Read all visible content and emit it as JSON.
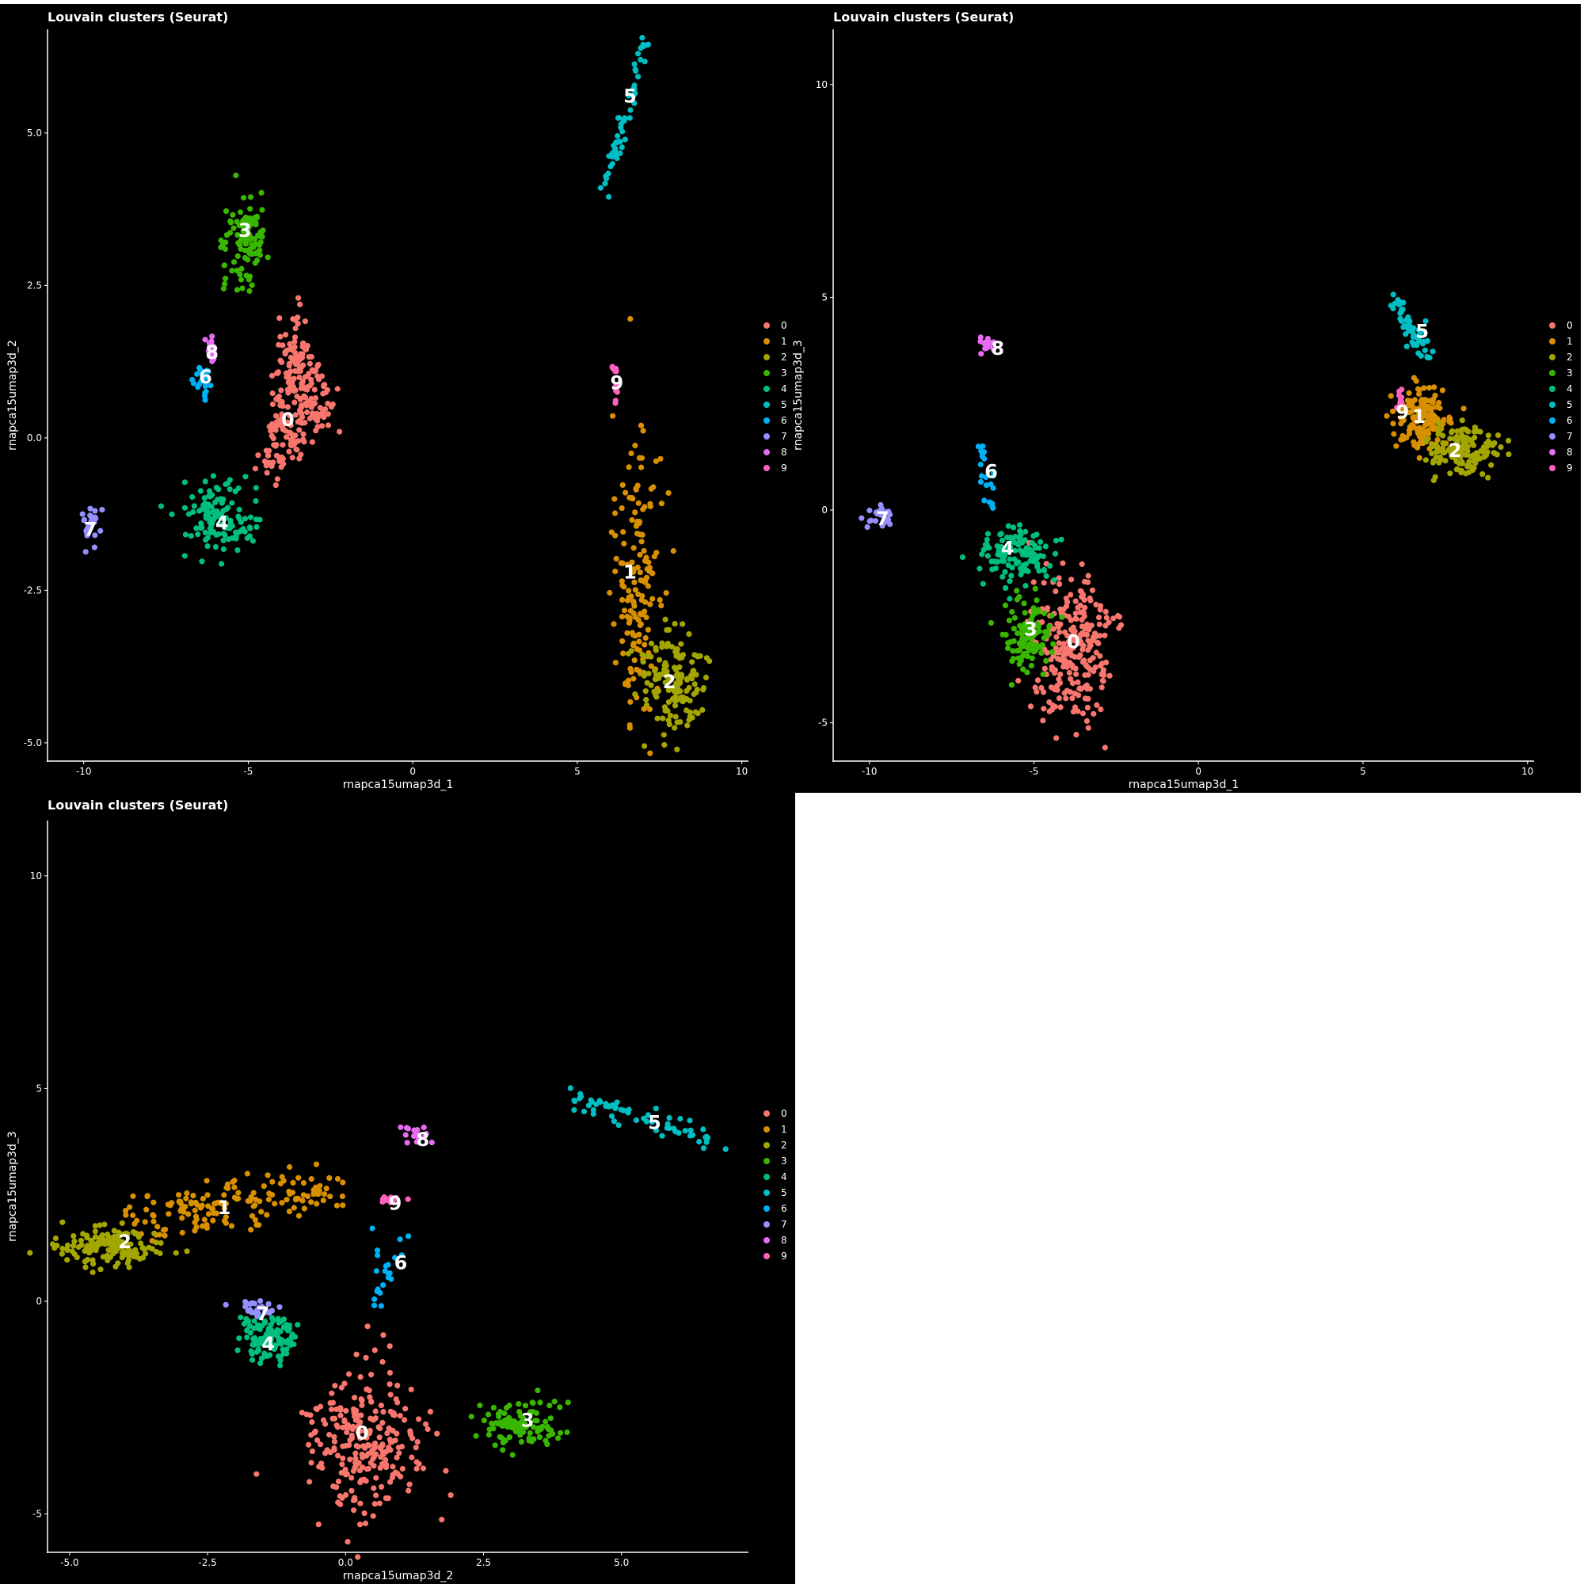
{
  "chart_data": [
    {
      "type": "scatter",
      "title": "Louvain clusters (Seurat)",
      "xlabel": "rnapca15umap3d_1",
      "ylabel": "rnapca15umap3d_2",
      "xlim": [
        -11.1,
        10.2
      ],
      "ylim": [
        -5.3,
        6.7
      ],
      "xticks": [
        -10,
        -5,
        0,
        5,
        10
      ],
      "xtick_labels": [
        "-10",
        "-5",
        "0",
        "5",
        "10"
      ],
      "yticks": [
        -5,
        -2.5,
        0,
        2.5,
        5
      ],
      "ytick_labels": [
        "-5.0",
        "-2.5",
        "0.0",
        "2.5",
        "5.0"
      ],
      "legend_position": "right",
      "clusters": [
        {
          "name": "0",
          "color": "#F8766D",
          "shape": "triangle",
          "blob": [
            [
              -3.7,
              2.2
            ],
            [
              -2.3,
              0.3
            ],
            [
              -4.6,
              -0.7
            ]
          ],
          "n": 260,
          "label_pos": [
            -3.8,
            0.3
          ]
        },
        {
          "name": "1",
          "color": "#D89000",
          "shape": "ellipse",
          "cx": 6.8,
          "cy": -2.4,
          "rx": 0.7,
          "ry": 1.9,
          "n": 160,
          "label_pos": [
            6.6,
            -2.2
          ]
        },
        {
          "name": "2",
          "color": "#A3A500",
          "shape": "ellipse",
          "cx": 7.9,
          "cy": -4.0,
          "rx": 1.0,
          "ry": 0.8,
          "n": 150,
          "label_pos": [
            7.8,
            -4.0
          ]
        },
        {
          "name": "3",
          "color": "#39B600",
          "shape": "ellipse",
          "cx": -5.1,
          "cy": 3.2,
          "rx": 0.6,
          "ry": 0.8,
          "n": 110,
          "label_pos": [
            -5.1,
            3.4
          ]
        },
        {
          "name": "4",
          "color": "#00BF7D",
          "shape": "ellipse",
          "cx": -5.9,
          "cy": -1.3,
          "rx": 1.0,
          "ry": 0.55,
          "n": 120,
          "label_pos": [
            -5.8,
            -1.4
          ]
        },
        {
          "name": "5",
          "color": "#00BFC4",
          "shape": "line",
          "from": [
            5.8,
            4.0
          ],
          "to": [
            7.1,
            6.5
          ],
          "spread": 0.08,
          "n": 60,
          "label_pos": [
            6.6,
            5.6
          ]
        },
        {
          "name": "6",
          "color": "#00B0F6",
          "shape": "ellipse",
          "cx": -6.4,
          "cy": 0.9,
          "rx": 0.25,
          "ry": 0.35,
          "n": 22,
          "label_pos": [
            -6.3,
            1.0
          ]
        },
        {
          "name": "7",
          "color": "#9590FF",
          "shape": "ellipse",
          "cx": -9.8,
          "cy": -1.45,
          "rx": 0.25,
          "ry": 0.3,
          "n": 25,
          "label_pos": [
            -9.8,
            -1.5
          ]
        },
        {
          "name": "8",
          "color": "#E76BF3",
          "shape": "ellipse",
          "cx": -6.15,
          "cy": 1.4,
          "rx": 0.15,
          "ry": 0.25,
          "n": 16,
          "label_pos": [
            -6.1,
            1.4
          ]
        },
        {
          "name": "9",
          "color": "#FF62BC",
          "shape": "ellipse",
          "cx": 6.15,
          "cy": 1.0,
          "rx": 0.08,
          "ry": 0.35,
          "n": 12,
          "label_pos": [
            6.2,
            0.9
          ]
        }
      ]
    },
    {
      "type": "scatter",
      "title": "Louvain clusters (Seurat)",
      "xlabel": "rnapca15umap3d_1",
      "ylabel": "rnapca15umap3d_3",
      "xlim": [
        -11.1,
        10.2
      ],
      "ylim": [
        -5.9,
        11.3
      ],
      "xticks": [
        -10,
        -5,
        0,
        5,
        10
      ],
      "xtick_labels": [
        "-10",
        "-5",
        "0",
        "5",
        "10"
      ],
      "yticks": [
        -5,
        0,
        5,
        10
      ],
      "ytick_labels": [
        "-5",
        "0",
        "5",
        "10"
      ],
      "legend_position": "right",
      "clusters": [
        {
          "name": "0",
          "color": "#F8766D",
          "shape": "ellipse",
          "cx": -3.8,
          "cy": -3.3,
          "rx": 1.1,
          "ry": 1.6,
          "n": 260,
          "label_pos": [
            -3.8,
            -3.1
          ]
        },
        {
          "name": "1",
          "color": "#D89000",
          "shape": "ellipse",
          "cx": 6.8,
          "cy": 2.1,
          "rx": 0.8,
          "ry": 0.7,
          "n": 160,
          "label_pos": [
            6.7,
            2.2
          ]
        },
        {
          "name": "2",
          "color": "#A3A500",
          "shape": "ellipse",
          "cx": 8.0,
          "cy": 1.4,
          "rx": 1.0,
          "ry": 0.5,
          "n": 150,
          "label_pos": [
            7.8,
            1.4
          ]
        },
        {
          "name": "3",
          "color": "#39B600",
          "shape": "ellipse",
          "cx": -5.1,
          "cy": -3.0,
          "rx": 0.6,
          "ry": 0.75,
          "n": 110,
          "label_pos": [
            -5.1,
            -2.8
          ]
        },
        {
          "name": "4",
          "color": "#00BF7D",
          "shape": "ellipse",
          "cx": -5.6,
          "cy": -1.0,
          "rx": 1.0,
          "ry": 0.55,
          "n": 120,
          "label_pos": [
            -5.8,
            -0.9
          ]
        },
        {
          "name": "5",
          "color": "#00BFC4",
          "shape": "line",
          "from": [
            6.0,
            4.8
          ],
          "to": [
            7.0,
            3.6
          ],
          "spread": 0.15,
          "n": 60,
          "label_pos": [
            6.8,
            4.2
          ]
        },
        {
          "name": "6",
          "color": "#00B0F6",
          "shape": "line",
          "from": [
            -6.6,
            1.6
          ],
          "to": [
            -6.3,
            0.0
          ],
          "spread": 0.1,
          "n": 22,
          "label_pos": [
            -6.3,
            0.9
          ]
        },
        {
          "name": "7",
          "color": "#9590FF",
          "shape": "ellipse",
          "cx": -9.7,
          "cy": -0.2,
          "rx": 0.3,
          "ry": 0.25,
          "n": 25,
          "label_pos": [
            -9.6,
            -0.2
          ]
        },
        {
          "name": "8",
          "color": "#E76BF3",
          "shape": "ellipse",
          "cx": -6.4,
          "cy": 3.9,
          "rx": 0.2,
          "ry": 0.25,
          "n": 16,
          "label_pos": [
            -6.1,
            3.8
          ]
        },
        {
          "name": "9",
          "color": "#FF62BC",
          "shape": "ellipse",
          "cx": 6.1,
          "cy": 2.6,
          "rx": 0.1,
          "ry": 0.25,
          "n": 12,
          "label_pos": [
            6.2,
            2.3
          ]
        }
      ]
    },
    {
      "type": "scatter",
      "title": "Louvain clusters (Seurat)",
      "xlabel": "rnapca15umap3d_2",
      "ylabel": "rnapca15umap3d_3",
      "xlim": [
        -5.4,
        7.3
      ],
      "ylim": [
        -5.9,
        11.3
      ],
      "xticks": [
        -5,
        -2.5,
        0,
        2.5,
        5
      ],
      "xtick_labels": [
        "-5.0",
        "-2.5",
        "0.0",
        "2.5",
        "5.0"
      ],
      "yticks": [
        -5,
        0,
        5,
        10
      ],
      "ytick_labels": [
        "-5",
        "0",
        "5",
        "10"
      ],
      "legend_position": "right",
      "clusters": [
        {
          "name": "0",
          "color": "#F8766D",
          "shape": "ellipse",
          "cx": 0.4,
          "cy": -3.3,
          "rx": 1.0,
          "ry": 1.6,
          "n": 260,
          "label_pos": [
            0.3,
            -3.1
          ]
        },
        {
          "name": "1",
          "color": "#D89000",
          "shape": "line",
          "from": [
            -3.8,
            2.0
          ],
          "to": [
            -0.3,
            2.6
          ],
          "spread": 0.3,
          "n": 160,
          "label_pos": [
            -2.2,
            2.2
          ]
        },
        {
          "name": "2",
          "color": "#A3A500",
          "shape": "ellipse",
          "cx": -4.3,
          "cy": 1.3,
          "rx": 0.9,
          "ry": 0.4,
          "n": 150,
          "label_pos": [
            -4.0,
            1.4
          ]
        },
        {
          "name": "3",
          "color": "#39B600",
          "shape": "ellipse",
          "cx": 3.2,
          "cy": -2.9,
          "rx": 0.7,
          "ry": 0.55,
          "n": 110,
          "label_pos": [
            3.3,
            -2.8
          ]
        },
        {
          "name": "4",
          "color": "#00BF7D",
          "shape": "ellipse",
          "cx": -1.4,
          "cy": -0.9,
          "rx": 0.5,
          "ry": 0.45,
          "n": 120,
          "label_pos": [
            -1.4,
            -1.0
          ]
        },
        {
          "name": "5",
          "color": "#00BFC4",
          "shape": "line",
          "from": [
            4.0,
            4.8
          ],
          "to": [
            6.6,
            3.8
          ],
          "spread": 0.15,
          "n": 60,
          "label_pos": [
            5.6,
            4.2
          ]
        },
        {
          "name": "6",
          "color": "#00B0F6",
          "shape": "line",
          "from": [
            1.0,
            1.6
          ],
          "to": [
            0.6,
            0.0
          ],
          "spread": 0.2,
          "n": 22,
          "label_pos": [
            1.0,
            0.9
          ]
        },
        {
          "name": "7",
          "color": "#9590FF",
          "shape": "ellipse",
          "cx": -1.6,
          "cy": -0.2,
          "rx": 0.35,
          "ry": 0.2,
          "n": 25,
          "label_pos": [
            -1.5,
            -0.3
          ]
        },
        {
          "name": "8",
          "color": "#E76BF3",
          "shape": "ellipse",
          "cx": 1.4,
          "cy": 3.9,
          "rx": 0.35,
          "ry": 0.2,
          "n": 16,
          "label_pos": [
            1.4,
            3.8
          ]
        },
        {
          "name": "9",
          "color": "#FF62BC",
          "shape": "ellipse",
          "cx": 0.8,
          "cy": 2.4,
          "rx": 0.25,
          "ry": 0.1,
          "n": 12,
          "label_pos": [
            0.9,
            2.3
          ]
        }
      ]
    }
  ]
}
